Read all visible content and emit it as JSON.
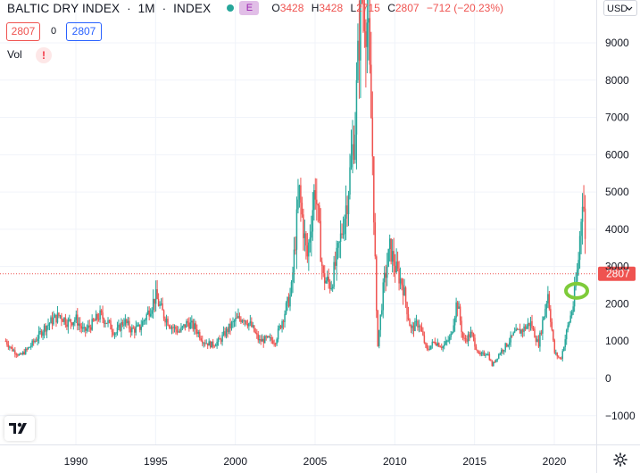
{
  "header": {
    "symbol": "BALTIC DRY INDEX",
    "interval": "1M",
    "exchange": "INDEX",
    "badge": "E",
    "ohlc": {
      "o_key": "O",
      "o_val": "3428",
      "h_key": "H",
      "h_val": "3428",
      "l_key": "L",
      "l_val": "2715",
      "c_key": "C",
      "c_val": "2807",
      "change": "−712 (−20.23%)"
    },
    "sell_price": "2807",
    "spread": "0",
    "buy_price": "2807"
  },
  "volume": {
    "label": "Vol",
    "warning": "!"
  },
  "currency": {
    "label": "USD",
    "icon": "chevron-down-icon"
  },
  "colors": {
    "up": "#26a69a",
    "down": "#ef5350",
    "grid": "#f0f3fa",
    "price_line": "#ef5350",
    "marker": "#7ecb3a",
    "text": "#131722"
  },
  "chart_data": {
    "type": "candlestick",
    "timeframe": "monthly",
    "price_scale": "linear",
    "y_ticks": [
      -1000,
      0,
      1000,
      2000,
      3000,
      4000,
      5000,
      6000,
      7000,
      8000,
      9000
    ],
    "y_tick_labels": [
      "−1000",
      "0",
      "1000",
      "2000",
      "3000",
      "4000",
      "5000",
      "6000",
      "7000",
      "8000",
      "9000"
    ],
    "x_ticks": [
      1990,
      1995,
      2000,
      2005,
      2010,
      2015,
      2020
    ],
    "x_tick_labels": [
      "1990",
      "1995",
      "2000",
      "2005",
      "2010",
      "2015",
      "2020"
    ],
    "y_range": [
      -1300,
      10300
    ],
    "x_range": [
      1985.6,
      2022.0
    ],
    "last_price": 2807,
    "last_price_label": "2807",
    "grid": true,
    "annotation": {
      "type": "circle",
      "date": 2021.4,
      "value": 2350
    },
    "series": [
      {
        "t": 1985.6,
        "v": 1000
      },
      {
        "t": 1986.0,
        "v": 780
      },
      {
        "t": 1986.5,
        "v": 600
      },
      {
        "t": 1987.0,
        "v": 800
      },
      {
        "t": 1987.5,
        "v": 1050
      },
      {
        "t": 1988.0,
        "v": 1350
      },
      {
        "t": 1988.5,
        "v": 1550
      },
      {
        "t": 1989.0,
        "v": 1700
      },
      {
        "t": 1989.5,
        "v": 1500
      },
      {
        "t": 1990.0,
        "v": 1600
      },
      {
        "t": 1990.5,
        "v": 1250
      },
      {
        "t": 1991.0,
        "v": 1450
      },
      {
        "t": 1991.5,
        "v": 1700
      },
      {
        "t": 1992.0,
        "v": 1500
      },
      {
        "t": 1992.5,
        "v": 1200
      },
      {
        "t": 1993.0,
        "v": 1550
      },
      {
        "t": 1993.5,
        "v": 1300
      },
      {
        "t": 1994.0,
        "v": 1350
      },
      {
        "t": 1994.5,
        "v": 1750
      },
      {
        "t": 1995.0,
        "v": 2200
      },
      {
        "t": 1995.5,
        "v": 1700
      },
      {
        "t": 1996.0,
        "v": 1400
      },
      {
        "t": 1996.5,
        "v": 1250
      },
      {
        "t": 1997.0,
        "v": 1500
      },
      {
        "t": 1997.5,
        "v": 1350
      },
      {
        "t": 1998.0,
        "v": 1000
      },
      {
        "t": 1998.5,
        "v": 900
      },
      {
        "t": 1999.0,
        "v": 1000
      },
      {
        "t": 1999.5,
        "v": 1300
      },
      {
        "t": 2000.0,
        "v": 1550
      },
      {
        "t": 2000.5,
        "v": 1650
      },
      {
        "t": 2001.0,
        "v": 1400
      },
      {
        "t": 2001.5,
        "v": 1000
      },
      {
        "t": 2002.0,
        "v": 1050
      },
      {
        "t": 2002.5,
        "v": 1000
      },
      {
        "t": 2003.0,
        "v": 1650
      },
      {
        "t": 2003.5,
        "v": 2300
      },
      {
        "t": 2004.0,
        "v": 5000
      },
      {
        "t": 2004.5,
        "v": 3200
      },
      {
        "t": 2005.0,
        "v": 5200
      },
      {
        "t": 2005.5,
        "v": 2700
      },
      {
        "t": 2006.0,
        "v": 2500
      },
      {
        "t": 2006.5,
        "v": 3500
      },
      {
        "t": 2007.0,
        "v": 4800
      },
      {
        "t": 2007.5,
        "v": 6700
      },
      {
        "t": 2007.9,
        "v": 10500
      },
      {
        "t": 2008.3,
        "v": 9500
      },
      {
        "t": 2008.6,
        "v": 6000
      },
      {
        "t": 2008.9,
        "v": 800
      },
      {
        "t": 2009.3,
        "v": 2500
      },
      {
        "t": 2009.7,
        "v": 3500
      },
      {
        "t": 2010.0,
        "v": 3000
      },
      {
        "t": 2010.5,
        "v": 2500
      },
      {
        "t": 2011.0,
        "v": 1300
      },
      {
        "t": 2011.5,
        "v": 1500
      },
      {
        "t": 2012.0,
        "v": 750
      },
      {
        "t": 2012.5,
        "v": 1000
      },
      {
        "t": 2013.0,
        "v": 850
      },
      {
        "t": 2013.5,
        "v": 1100
      },
      {
        "t": 2013.9,
        "v": 2100
      },
      {
        "t": 2014.3,
        "v": 1000
      },
      {
        "t": 2014.8,
        "v": 1200
      },
      {
        "t": 2015.3,
        "v": 600
      },
      {
        "t": 2015.8,
        "v": 700
      },
      {
        "t": 2016.1,
        "v": 350
      },
      {
        "t": 2016.6,
        "v": 700
      },
      {
        "t": 2017.0,
        "v": 900
      },
      {
        "t": 2017.5,
        "v": 1200
      },
      {
        "t": 2018.0,
        "v": 1300
      },
      {
        "t": 2018.5,
        "v": 1500
      },
      {
        "t": 2019.0,
        "v": 900
      },
      {
        "t": 2019.6,
        "v": 2300
      },
      {
        "t": 2020.0,
        "v": 700
      },
      {
        "t": 2020.4,
        "v": 500
      },
      {
        "t": 2020.8,
        "v": 1300
      },
      {
        "t": 2021.2,
        "v": 2000
      },
      {
        "t": 2021.5,
        "v": 3100
      },
      {
        "t": 2021.8,
        "v": 5200
      },
      {
        "t": 2022.0,
        "v": 2807
      }
    ]
  }
}
